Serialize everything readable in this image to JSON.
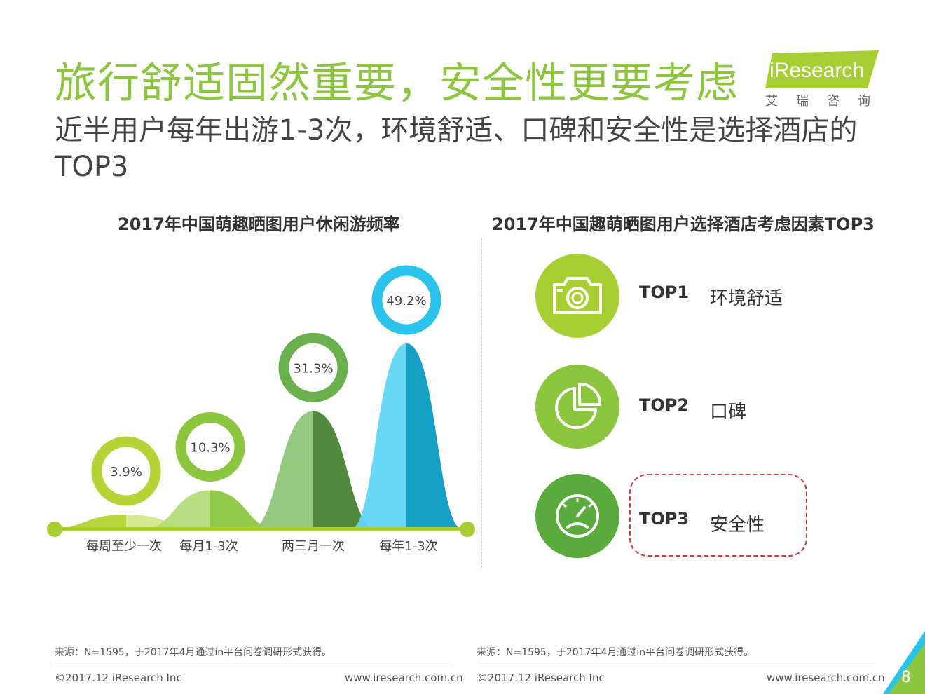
{
  "header": {
    "title": "旅行舒适固然重要，安全性更要考虑",
    "subtitle": "近半用户每年出游1-3次，环境舒适、口碑和安全性是选择酒店的TOP3",
    "logo_text": "iResearch",
    "logo_cn": "艾瑞咨询"
  },
  "left_panel": {
    "title": "2017年中国萌趣晒图用户休闲游频率"
  },
  "right_panel": {
    "title": "2017年中国趣萌晒图用户选择酒店考虑因素TOP3",
    "factors": [
      {
        "rank": "TOP1",
        "name": "环境舒适",
        "icon": "camera-icon"
      },
      {
        "rank": "TOP2",
        "name": "口碑",
        "icon": "pie-chart-icon"
      },
      {
        "rank": "TOP3",
        "name": "安全性",
        "icon": "speedometer-icon"
      }
    ],
    "colors": {
      "circle": "#8cc63f",
      "circle_dark": "#5aab3c"
    }
  },
  "chart_data": {
    "type": "area",
    "title": "2017年中国萌趣晒图用户休闲游频率",
    "categories": [
      "每周至少一次",
      "每月1-3次",
      "两三月一次",
      "每年1-3次"
    ],
    "values": [
      3.9,
      10.3,
      31.3,
      49.2
    ],
    "value_labels": [
      "3.9%",
      "10.3%",
      "31.3%",
      "49.2%"
    ],
    "unit": "%",
    "colors": [
      "#b5d334",
      "#8cc63f",
      "#6ab04c",
      "#29c3ec"
    ]
  },
  "footer": {
    "source_left": "来源：N=1595，于2017年4月通过in平台问卷调研形式获得。",
    "source_right": "来源：N=1595，于2017年4月通过in平台问卷调研形式获得。",
    "copyright_left": "©2017.12 iResearch Inc",
    "copyright_right": "©2017.12 iResearch Inc",
    "site_left": "www.iresearch.com.cn",
    "site_right": "www.iresearch.com.cn",
    "page_number": "8"
  }
}
